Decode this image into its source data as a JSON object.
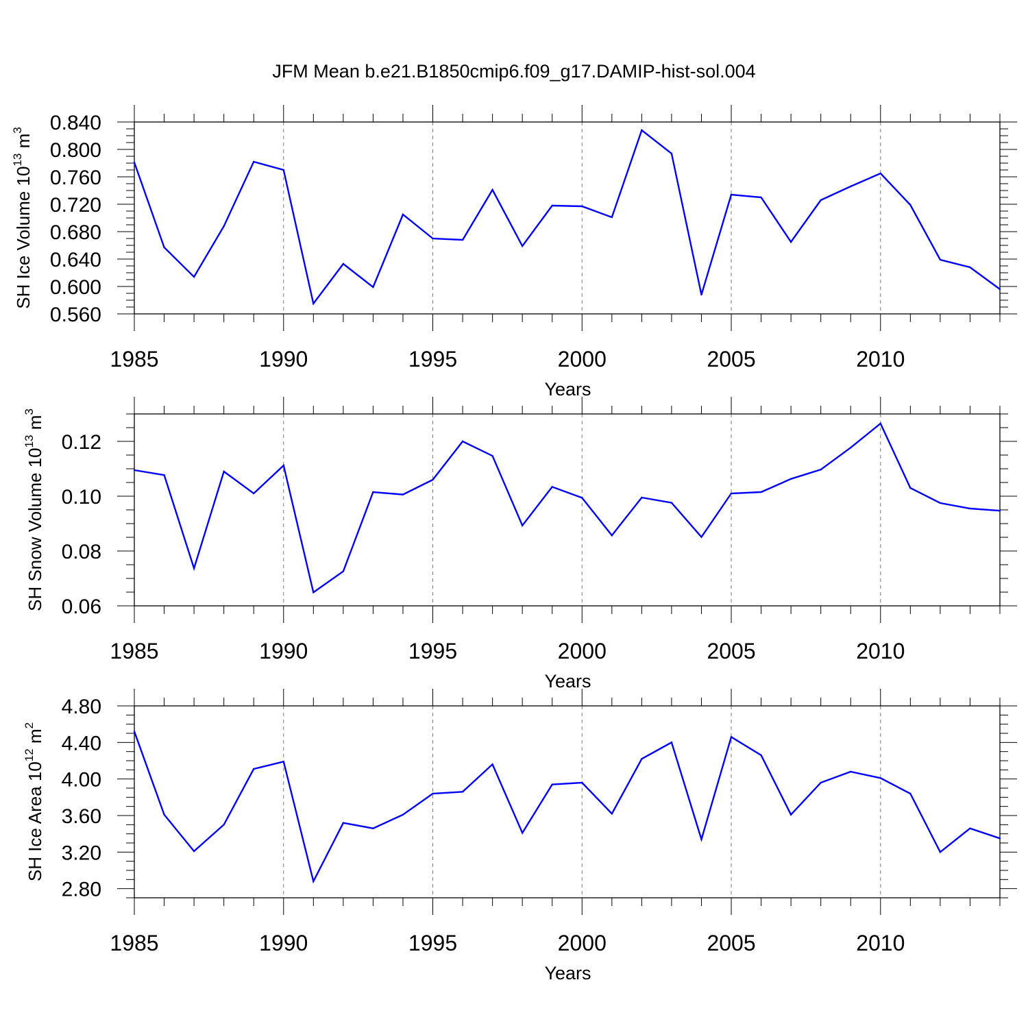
{
  "figure_title": "JFM Mean b.e21.B1850cmip6.f09_g17.DAMIP-hist-sol.004",
  "chart_data": [
    {
      "type": "line",
      "title": "",
      "ylabel": {
        "base": "SH Ice Volume 10",
        "exp": "13",
        "unit": " m",
        "unit_exp": "3"
      },
      "xlabel": "Years",
      "xlim": [
        1985,
        2014
      ],
      "ylim": [
        0.56,
        0.84
      ],
      "xticks": [
        "1985",
        "1990",
        "1995",
        "2000",
        "2005",
        "2010"
      ],
      "yticks": [
        "0.560",
        "0.600",
        "0.640",
        "0.680",
        "0.720",
        "0.760",
        "0.800",
        "0.840"
      ],
      "line_color": "#0000ff",
      "grid": "vertical dashed at major x ticks",
      "x": [
        1985,
        1986,
        1987,
        1988,
        1989,
        1990,
        1991,
        1992,
        1993,
        1994,
        1995,
        1996,
        1997,
        1998,
        1999,
        2000,
        2001,
        2002,
        2003,
        2004,
        2005,
        2006,
        2007,
        2008,
        2009,
        2010,
        2011,
        2012,
        2013,
        2014
      ],
      "values": [
        0.781,
        0.657,
        0.614,
        0.688,
        0.782,
        0.77,
        0.575,
        0.633,
        0.599,
        0.705,
        0.67,
        0.668,
        0.741,
        0.659,
        0.718,
        0.717,
        0.701,
        0.828,
        0.794,
        0.588,
        0.734,
        0.73,
        0.665,
        0.726,
        0.746,
        0.765,
        0.719,
        0.639,
        0.628,
        0.596
      ]
    },
    {
      "type": "line",
      "title": "",
      "ylabel": {
        "base": "SH Snow Volume 10",
        "exp": "13",
        "unit": " m",
        "unit_exp": "3"
      },
      "xlabel": "Years",
      "xlim": [
        1985,
        2014
      ],
      "ylim": [
        0.06,
        0.13
      ],
      "xticks": [
        "1985",
        "1990",
        "1995",
        "2000",
        "2005",
        "2010"
      ],
      "yticks": [
        "0.06",
        "0.08",
        "0.10",
        "0.12"
      ],
      "line_color": "#0000ff",
      "grid": "vertical dashed at major x ticks",
      "x": [
        1985,
        1986,
        1987,
        1988,
        1989,
        1990,
        1991,
        1992,
        1993,
        1994,
        1995,
        1996,
        1997,
        1998,
        1999,
        2000,
        2001,
        2002,
        2003,
        2004,
        2005,
        2006,
        2007,
        2008,
        2009,
        2010,
        2011,
        2012,
        2013,
        2014
      ],
      "values": [
        0.1095,
        0.1077,
        0.0737,
        0.109,
        0.101,
        0.1112,
        0.0649,
        0.0726,
        0.1015,
        0.1006,
        0.106,
        0.12,
        0.1147,
        0.0893,
        0.1034,
        0.0994,
        0.0857,
        0.0995,
        0.0976,
        0.0851,
        0.101,
        0.1015,
        0.1063,
        0.1097,
        0.1177,
        0.1265,
        0.103,
        0.0975,
        0.0955,
        0.0947
      ]
    },
    {
      "type": "line",
      "title": "",
      "ylabel": {
        "base": "SH Ice Area 10",
        "exp": "12",
        "unit": " m",
        "unit_exp": "2"
      },
      "xlabel": "Years",
      "xlim": [
        1985,
        2014
      ],
      "ylim": [
        2.7,
        4.8
      ],
      "xticks": [
        "1985",
        "1990",
        "1995",
        "2000",
        "2005",
        "2010"
      ],
      "yticks": [
        "2.80",
        "3.20",
        "3.60",
        "4.00",
        "4.40",
        "4.80"
      ],
      "line_color": "#0000ff",
      "grid": "vertical dashed at major x ticks",
      "x": [
        1985,
        1986,
        1987,
        1988,
        1989,
        1990,
        1991,
        1992,
        1993,
        1994,
        1995,
        1996,
        1997,
        1998,
        1999,
        2000,
        2001,
        2002,
        2003,
        2004,
        2005,
        2006,
        2007,
        2008,
        2009,
        2010,
        2011,
        2012,
        2013,
        2014
      ],
      "values": [
        4.52,
        3.61,
        3.21,
        3.5,
        4.11,
        4.19,
        2.88,
        3.52,
        3.46,
        3.61,
        3.84,
        3.86,
        4.16,
        3.41,
        3.94,
        3.96,
        3.62,
        4.22,
        4.4,
        3.34,
        4.46,
        4.26,
        3.61,
        3.96,
        4.08,
        4.01,
        3.84,
        3.2,
        3.46,
        3.35
      ]
    }
  ]
}
